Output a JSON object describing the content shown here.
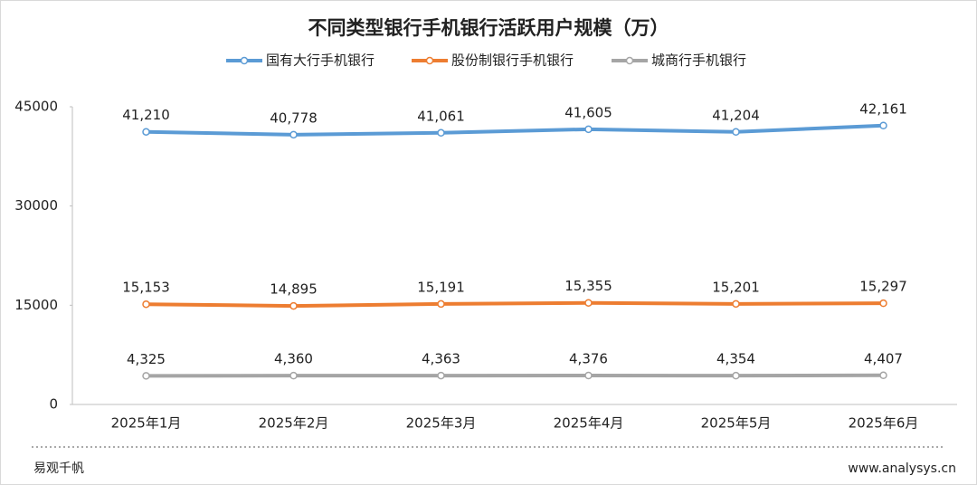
{
  "chart_data": {
    "type": "line",
    "title": "不同类型银行手机银行活跃用户规模（万）",
    "categories": [
      "2025年1月",
      "2025年2月",
      "2025年3月",
      "2025年4月",
      "2025年5月",
      "2025年6月"
    ],
    "series": [
      {
        "name": "国有大行手机银行",
        "color": "#5b9bd5",
        "values": [
          41210,
          40778,
          41061,
          41605,
          41204,
          42161
        ],
        "value_labels": [
          "41,210",
          "40,778",
          "41,061",
          "41,605",
          "41,204",
          "42,161"
        ]
      },
      {
        "name": "股份制银行手机银行",
        "color": "#ed7d31",
        "values": [
          15153,
          14895,
          15191,
          15355,
          15201,
          15297
        ],
        "value_labels": [
          "15,153",
          "14,895",
          "15,191",
          "15,355",
          "15,201",
          "15,297"
        ]
      },
      {
        "name": "城商行手机银行",
        "color": "#a5a5a5",
        "values": [
          4325,
          4360,
          4363,
          4376,
          4354,
          4407
        ],
        "value_labels": [
          "4,325",
          "4,360",
          "4,363",
          "4,376",
          "4,354",
          "4,407"
        ]
      }
    ],
    "ylim": [
      0,
      45000
    ],
    "yticks": [
      0,
      15000,
      30000,
      45000
    ],
    "grid": false,
    "legend": "top"
  },
  "footer": {
    "source": "易观千帆",
    "url": "www.analysys.cn"
  }
}
